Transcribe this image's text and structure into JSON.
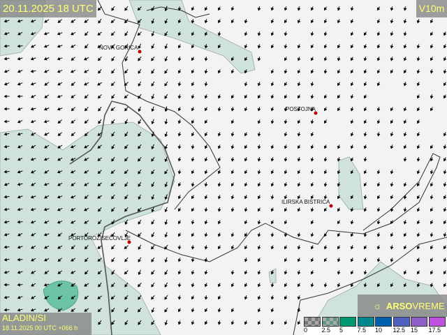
{
  "header": {
    "valid_time": "20.11.2025 18 UTC",
    "variable": "V10m"
  },
  "footer": {
    "model": "ALADIN/SI",
    "run": "18.11.2025 00 UTC +066 h"
  },
  "logo": {
    "text_bold": "ARSO",
    "text_light": "VREME"
  },
  "cities": [
    {
      "name": "NOVA GORICA"
    },
    {
      "name": "POSTOJNA"
    },
    {
      "name": "ILIRSKA BISTRICA"
    },
    {
      "name": "PORTOROŽ/SEČOVLJE"
    }
  ],
  "legend": {
    "labels": [
      "0",
      "2.5",
      "5",
      "7.5",
      "10",
      "12.5",
      "15",
      "17.5"
    ],
    "colors": [
      "#777777",
      "#5a9a80",
      "#009870",
      "#008890",
      "#0060b0",
      "#5060c0",
      "#9060c8",
      "#c050e0"
    ]
  },
  "colors": {
    "sea_shade": "#cfe3dc",
    "strong_wind": "#6cc4a4",
    "label_text": "#ffff70",
    "city_marker": "#c00000"
  }
}
